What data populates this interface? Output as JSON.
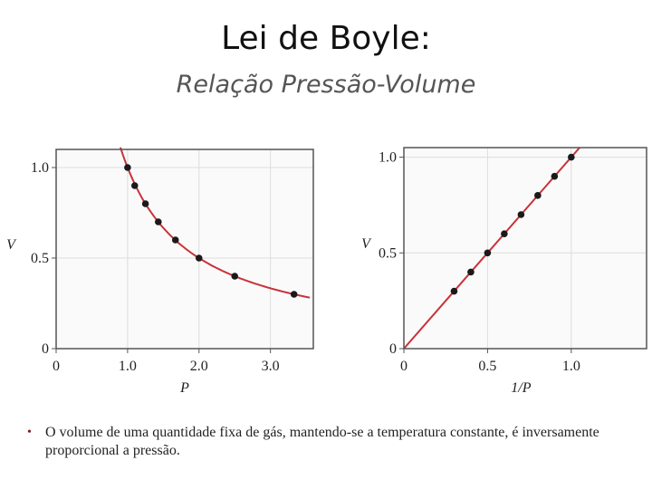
{
  "slide": {
    "title": "Lei de Boyle:",
    "subtitle": "Relação Pressão-Volume",
    "bullet_marker": "•",
    "bullet_text": "O volume de uma quantidade fixa de gás, mantendo-se a temperatura constante, é inversamente proporcional a pressão."
  },
  "colors": {
    "curve": "#c8333a",
    "points": "#1a1a1a",
    "frame": "#555555",
    "grid": "#dddddd"
  },
  "chart_data": [
    {
      "type": "scatter",
      "title": "",
      "xlabel": "P",
      "ylabel": "V",
      "xlim": [
        0,
        3.6
      ],
      "ylim": [
        0,
        1.1
      ],
      "xticks": [
        "0",
        "1.0",
        "2.0",
        "3.0"
      ],
      "xtick_values": [
        0,
        1,
        2,
        3
      ],
      "yticks": [
        "0",
        "0.5",
        "1.0"
      ],
      "ytick_values": [
        0,
        0.5,
        1
      ],
      "grid": true,
      "series": [
        {
          "x": [
            1.0,
            1.1,
            1.25,
            1.43,
            1.67,
            2.0,
            2.5,
            3.33
          ],
          "y": [
            1.0,
            0.9,
            0.8,
            0.7,
            0.6,
            0.5,
            0.4,
            0.3
          ]
        }
      ],
      "fit_curve": {
        "form": "V = 1 / P",
        "x_range": [
          0.9,
          3.55
        ]
      }
    },
    {
      "type": "scatter",
      "title": "",
      "xlabel": "1/P",
      "ylabel": "V",
      "xlim": [
        0,
        1.45
      ],
      "ylim": [
        0,
        1.05
      ],
      "xticks": [
        "0",
        "0.5",
        "1.0"
      ],
      "xtick_values": [
        0,
        0.5,
        1
      ],
      "yticks": [
        "0",
        "0.5",
        "1.0"
      ],
      "ytick_values": [
        0,
        0.5,
        1
      ],
      "grid": true,
      "series": [
        {
          "x": [
            0.3,
            0.4,
            0.5,
            0.6,
            0.7,
            0.8,
            0.9,
            1.0
          ],
          "y": [
            0.3,
            0.4,
            0.5,
            0.6,
            0.7,
            0.8,
            0.9,
            1.0
          ]
        }
      ],
      "fit_line": {
        "form": "V = 1/P",
        "x_range": [
          0,
          1.05
        ]
      }
    }
  ]
}
